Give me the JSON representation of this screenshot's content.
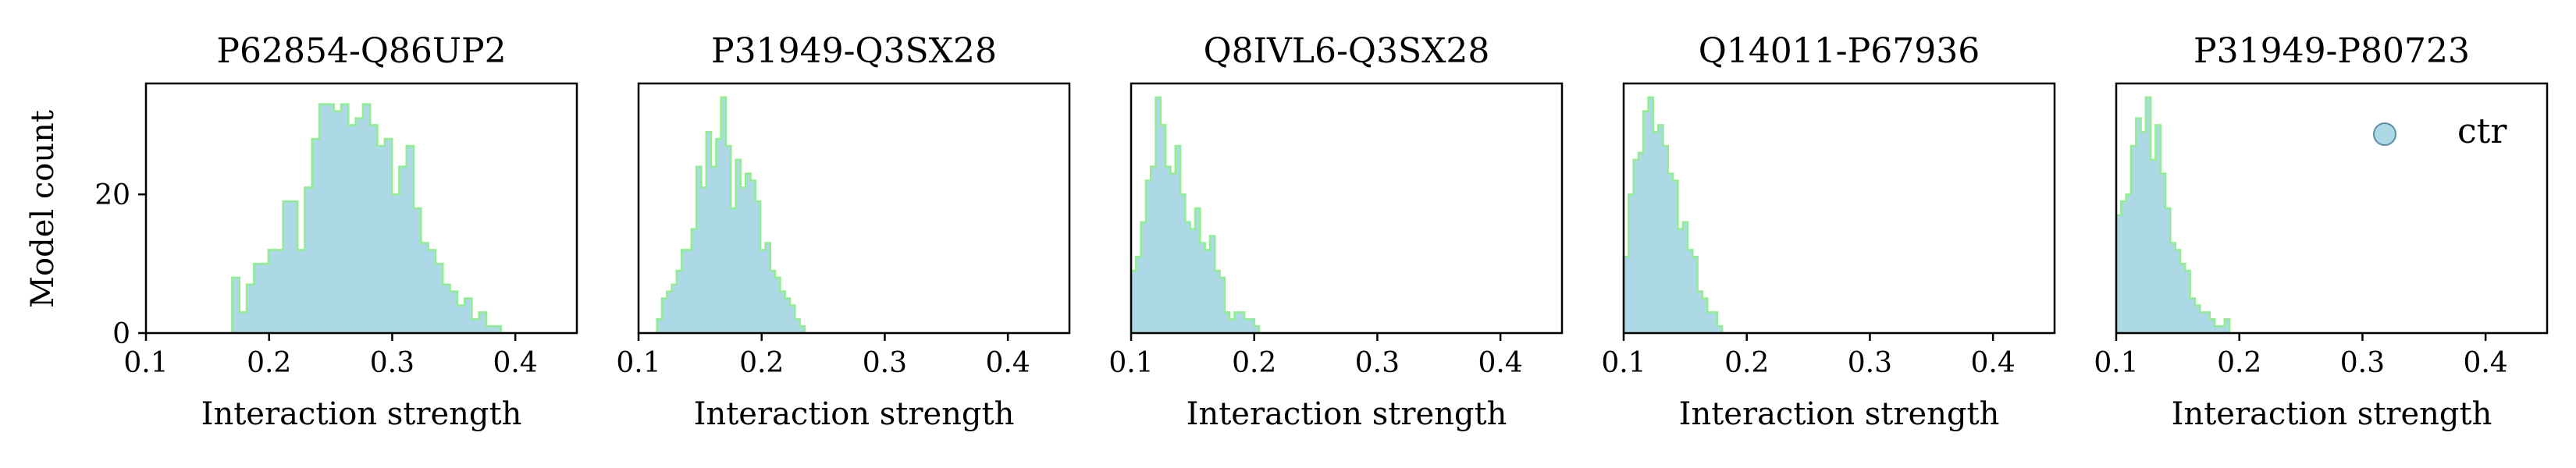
{
  "figure": {
    "y_axis_label": "Model count"
  },
  "chart_data": [
    {
      "type": "histogram",
      "title": "P62854-Q86UP2",
      "xlabel": "Interaction strength",
      "ylabel": "Model count",
      "xlim": [
        0.1,
        0.45
      ],
      "ylim": [
        0,
        36
      ],
      "xticks": [
        "0.1",
        "0.2",
        "0.3",
        "0.4"
      ],
      "yticks": [
        "0",
        "20"
      ],
      "grid": false,
      "bin_width": 0.0059,
      "bins_start": 0.17,
      "counts": [
        8,
        3,
        7,
        10,
        10,
        12,
        12,
        19,
        19,
        12,
        21,
        28,
        33,
        33,
        32,
        33,
        30,
        31,
        33,
        30,
        27,
        28,
        20,
        24,
        27,
        18,
        13,
        12,
        10,
        7,
        6,
        4,
        5,
        2,
        3,
        1,
        1
      ],
      "fill_color": "#ADD8E6",
      "edge_color": "#90EE90"
    },
    {
      "type": "histogram",
      "title": "P31949-Q3SX28",
      "xlabel": "Interaction strength",
      "xlim": [
        0.1,
        0.45
      ],
      "ylim": [
        0,
        36
      ],
      "xticks": [
        "0.1",
        "0.2",
        "0.3",
        "0.4"
      ],
      "grid": false,
      "bin_width": 0.004,
      "bins_start": 0.115,
      "counts": [
        2,
        5,
        6,
        7,
        9,
        12,
        12,
        15,
        24,
        21,
        29,
        24,
        28,
        34,
        27,
        18,
        25,
        21,
        23,
        22,
        19,
        12,
        13,
        9,
        8,
        6,
        5,
        4,
        2,
        1
      ],
      "fill_color": "#ADD8E6",
      "edge_color": "#90EE90"
    },
    {
      "type": "histogram",
      "title": "Q8IVL6-Q3SX28",
      "xlabel": "Interaction strength",
      "xlim": [
        0.1,
        0.45
      ],
      "ylim": [
        0,
        36
      ],
      "xticks": [
        "0.1",
        "0.2",
        "0.3",
        "0.4"
      ],
      "grid": false,
      "bin_width": 0.004,
      "bins_start": 0.1,
      "counts": [
        9,
        11,
        16,
        22,
        24,
        34,
        30,
        24,
        23,
        27,
        20,
        16,
        15,
        18,
        13,
        12,
        14,
        9,
        8,
        3,
        2,
        3,
        3,
        2,
        2,
        1
      ],
      "fill_color": "#ADD8E6",
      "edge_color": "#90EE90"
    },
    {
      "type": "histogram",
      "title": "Q14011-P67936",
      "xlabel": "Interaction strength",
      "xlim": [
        0.1,
        0.45
      ],
      "ylim": [
        0,
        36
      ],
      "xticks": [
        "0.1",
        "0.2",
        "0.3",
        "0.4"
      ],
      "grid": false,
      "bin_width": 0.004,
      "bins_start": 0.1,
      "counts": [
        11,
        20,
        25,
        26,
        32,
        34,
        29,
        30,
        27,
        23,
        22,
        15,
        16,
        12,
        11,
        6,
        5,
        3,
        3,
        1
      ],
      "fill_color": "#ADD8E6",
      "edge_color": "#90EE90"
    },
    {
      "type": "histogram",
      "title": "P31949-P80723",
      "xlabel": "Interaction strength",
      "xlim": [
        0.1,
        0.45
      ],
      "ylim": [
        0,
        36
      ],
      "xticks": [
        "0.1",
        "0.2",
        "0.3",
        "0.4"
      ],
      "grid": false,
      "bin_width": 0.004,
      "bins_start": 0.1,
      "counts": [
        17,
        19,
        20,
        27,
        31,
        29,
        34,
        25,
        30,
        23,
        18,
        13,
        12,
        10,
        9,
        5,
        4,
        3,
        3,
        2,
        1,
        1,
        2
      ],
      "fill_color": "#ADD8E6",
      "edge_color": "#90EE90",
      "legend": {
        "label": "ctr",
        "position": "upper right",
        "marker": "circle"
      }
    }
  ]
}
